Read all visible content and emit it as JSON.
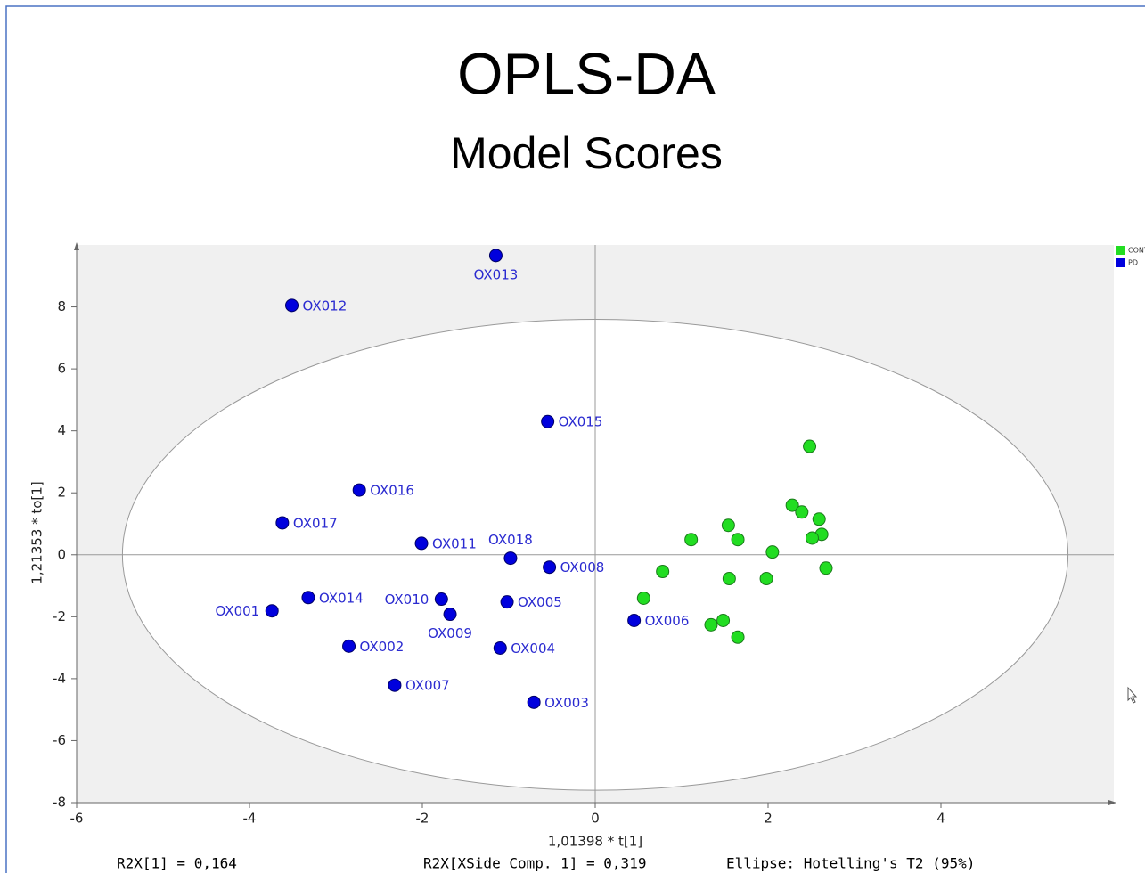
{
  "chart_data": {
    "type": "scatter",
    "title": "OPLS-DA",
    "subtitle": "Model Scores",
    "x_label": "1,01398 * t[1]",
    "y_label": "1,21353 * to[1]",
    "annotations": [
      "R2X[1] = 0,164",
      "R2X[XSide Comp. 1] = 0,319",
      "Ellipse: Hotelling's T2 (95%)"
    ],
    "xlim": [
      -6,
      6
    ],
    "ylim": [
      -8,
      10
    ],
    "xticks": [
      -6,
      -4,
      -2,
      0,
      2,
      4
    ],
    "yticks": [
      -8,
      -6,
      -4,
      -2,
      0,
      2,
      4,
      6,
      8
    ],
    "ellipse": {
      "rx": 5.47,
      "ry": 7.6
    },
    "legend": "top-right",
    "series": [
      {
        "name": "CONT",
        "color": "#22dd22",
        "x": [
          2.48,
          2.28,
          2.39,
          2.59,
          2.62,
          2.51,
          1.54,
          1.65,
          1.11,
          2.05,
          2.67,
          0.78,
          1.55,
          1.98,
          0.56,
          1.34,
          1.48,
          1.65
        ],
        "y": [
          3.5,
          1.6,
          1.38,
          1.15,
          0.66,
          0.54,
          0.95,
          0.49,
          0.49,
          0.09,
          -0.43,
          -0.54,
          -0.77,
          -0.77,
          -1.4,
          -2.26,
          -2.12,
          -2.66
        ]
      },
      {
        "name": "PD",
        "color": "#0000dd",
        "labels": [
          "OX013",
          "OX012",
          "OX015",
          "OX016",
          "OX017",
          "OX011",
          "OX018",
          "OX008",
          "OX014",
          "OX001",
          "OX010",
          "OX009",
          "OX005",
          "OX006",
          "OX002",
          "OX004",
          "OX007",
          "OX003"
        ],
        "x": [
          -1.15,
          -3.51,
          -0.55,
          -2.73,
          -3.62,
          -2.01,
          -0.98,
          -0.53,
          -3.32,
          -3.74,
          -1.78,
          -1.68,
          -1.02,
          0.45,
          -2.85,
          -1.1,
          -2.32,
          -0.71
        ],
        "y": [
          9.66,
          8.05,
          4.3,
          2.09,
          1.03,
          0.37,
          -0.11,
          -0.4,
          -1.38,
          -1.81,
          -1.43,
          -1.92,
          -1.52,
          -2.12,
          -2.95,
          -3.01,
          -4.21,
          -4.76
        ]
      }
    ]
  }
}
